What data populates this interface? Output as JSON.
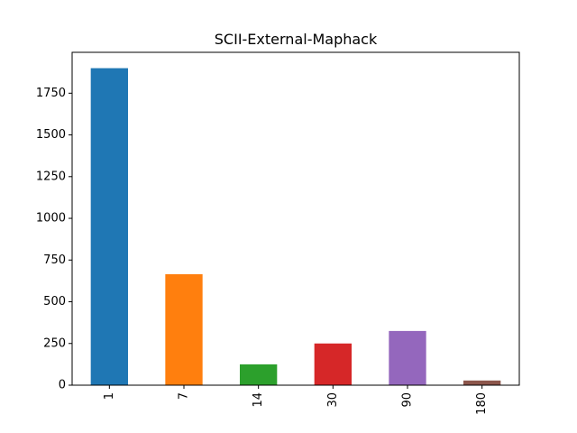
{
  "chart_data": {
    "type": "bar",
    "title": "SCII-External-Maphack",
    "xlabel": "",
    "ylabel": "",
    "categories": [
      "1",
      "7",
      "14",
      "30",
      "90",
      "180"
    ],
    "values": [
      1900,
      665,
      125,
      250,
      325,
      28
    ],
    "colors": [
      "#1f77b4",
      "#ff7f0e",
      "#2ca02c",
      "#d62728",
      "#9467bd",
      "#8c564b"
    ],
    "ylim": [
      0,
      1995
    ],
    "yticks": [
      0,
      250,
      500,
      750,
      1000,
      1250,
      1500,
      1750
    ],
    "grid": false,
    "legend": "none"
  }
}
